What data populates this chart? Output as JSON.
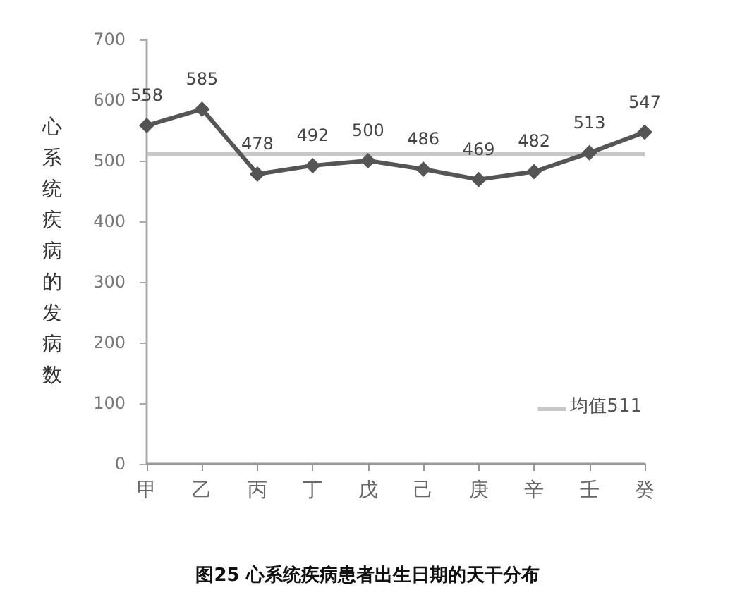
{
  "chart_data": {
    "type": "line",
    "title": "图25 心系统疾病患者出生日期的天干分布",
    "ylabel": "心系统疾病的发病数",
    "categories": [
      "甲",
      "乙",
      "丙",
      "丁",
      "戊",
      "己",
      "庚",
      "辛",
      "壬",
      "癸"
    ],
    "series": [
      {
        "color": "#555555",
        "values": [
          558,
          585,
          478,
          492,
          500,
          486,
          469,
          482,
          513,
          547
        ],
        "value_labels": [
          "558",
          "585",
          "478",
          "492",
          "500",
          "486",
          "469",
          "482",
          "513",
          "547"
        ]
      }
    ],
    "ylim": [
      0,
      700
    ],
    "yticks": [
      0,
      100,
      200,
      300,
      400,
      500,
      600,
      700
    ],
    "ref_lines": [
      {
        "axis": "y",
        "value": 511,
        "label": "均值511",
        "color": "#c8c8c8"
      }
    ],
    "grid": false,
    "marker": "diamond",
    "line_style": "solid"
  }
}
